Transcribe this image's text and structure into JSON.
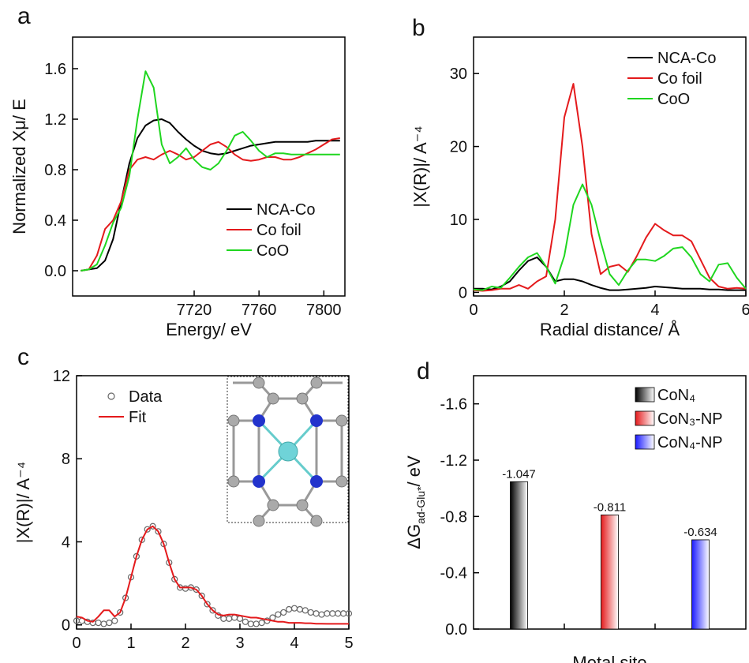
{
  "chart_data": [
    {
      "type": "line",
      "panel_label": "a",
      "x_label": "Energy/ eV",
      "y_label": "Normalized Xμ/ E",
      "x": [
        7650,
        7655,
        7660,
        7665,
        7670,
        7675,
        7680,
        7685,
        7690,
        7695,
        7700,
        7705,
        7710,
        7715,
        7720,
        7725,
        7730,
        7735,
        7740,
        7745,
        7750,
        7755,
        7760,
        7765,
        7770,
        7775,
        7780,
        7785,
        7790,
        7795,
        7800,
        7805,
        7810
      ],
      "series": [
        {
          "name": "NCA-Co",
          "color": "#000000",
          "values": [
            0,
            0.01,
            0.02,
            0.08,
            0.25,
            0.55,
            0.85,
            1.05,
            1.15,
            1.19,
            1.2,
            1.17,
            1.1,
            1.04,
            0.99,
            0.95,
            0.93,
            0.92,
            0.93,
            0.95,
            0.97,
            0.99,
            1.0,
            1.01,
            1.02,
            1.02,
            1.02,
            1.02,
            1.02,
            1.03,
            1.03,
            1.03,
            1.03
          ]
        },
        {
          "name": "Co foil",
          "color": "#e41a1c",
          "values": [
            0,
            0.01,
            0.12,
            0.33,
            0.4,
            0.55,
            0.8,
            0.88,
            0.9,
            0.88,
            0.92,
            0.95,
            0.92,
            0.88,
            0.9,
            0.95,
            1.0,
            1.02,
            0.98,
            0.92,
            0.88,
            0.87,
            0.88,
            0.9,
            0.9,
            0.88,
            0.88,
            0.9,
            0.93,
            0.96,
            1.0,
            1.04,
            1.05
          ]
        },
        {
          "name": "CoO",
          "color": "#1fd61f",
          "values": [
            0,
            0.01,
            0.05,
            0.2,
            0.38,
            0.5,
            0.75,
            1.2,
            1.58,
            1.45,
            1.0,
            0.85,
            0.9,
            0.97,
            0.88,
            0.82,
            0.8,
            0.85,
            0.95,
            1.07,
            1.1,
            1.03,
            0.95,
            0.9,
            0.93,
            0.93,
            0.92,
            0.92,
            0.92,
            0.92,
            0.92,
            0.92,
            0.92
          ]
        }
      ],
      "xlim": [
        7645,
        7813
      ],
      "xticks": [
        7720,
        7760,
        7800
      ],
      "ylim": [
        -0.2,
        1.85
      ],
      "yticks": [
        {
          "value": 0,
          "label": "0.0"
        },
        0.4,
        0.8,
        1.2,
        1.6
      ],
      "legend": "lower right"
    },
    {
      "type": "line",
      "panel_label": "b",
      "x_label": "Radial distance/ Å",
      "y_label": "|X(R)|/ A⁻⁴",
      "x": [
        0,
        0.2,
        0.4,
        0.6,
        0.8,
        1.0,
        1.2,
        1.4,
        1.6,
        1.8,
        2.0,
        2.2,
        2.4,
        2.6,
        2.8,
        3.0,
        3.2,
        3.4,
        3.6,
        3.8,
        4.0,
        4.2,
        4.4,
        4.6,
        4.8,
        5.0,
        5.2,
        5.4,
        5.6,
        5.8,
        6.0
      ],
      "series": [
        {
          "name": "NCA-Co",
          "color": "#000000",
          "values": [
            0.5,
            0.5,
            0.4,
            0.8,
            1.5,
            3.0,
            4.3,
            4.8,
            3.5,
            1.5,
            1.8,
            1.8,
            1.5,
            1.0,
            0.6,
            0.3,
            0.3,
            0.4,
            0.5,
            0.6,
            0.8,
            0.7,
            0.6,
            0.5,
            0.5,
            0.5,
            0.4,
            0.4,
            0.3,
            0.3,
            0.3
          ]
        },
        {
          "name": "Co foil",
          "color": "#e41a1c",
          "values": [
            0.3,
            0.2,
            0.3,
            0.5,
            0.5,
            1.0,
            0.5,
            1.5,
            2.2,
            10,
            24,
            28.6,
            20,
            8,
            2.5,
            3.5,
            3.8,
            2.8,
            5,
            7.5,
            9.4,
            8.5,
            7.8,
            7.8,
            7,
            4.5,
            2,
            0.8,
            0.5,
            0.6,
            0.5
          ]
        },
        {
          "name": "CoO",
          "color": "#1fd61f",
          "values": [
            0.4,
            0.3,
            0.8,
            0.6,
            2,
            3.5,
            4.8,
            5.4,
            3.5,
            1.2,
            5,
            12,
            14.8,
            12,
            7,
            2.5,
            1.0,
            3.0,
            4.5,
            4.5,
            4.3,
            5.0,
            6.0,
            6.2,
            4.8,
            2.5,
            1.5,
            3.8,
            4.0,
            2.0,
            0.5
          ]
        }
      ],
      "xlim": [
        0,
        6
      ],
      "xticks": [
        0,
        2,
        4,
        6
      ],
      "ylim": [
        -0.5,
        35
      ],
      "yticks": [
        0,
        10,
        20,
        30
      ],
      "legend": "upper right"
    },
    {
      "type": "line",
      "panel_label": "c",
      "y_label": "|X(R)|/ A⁻⁴",
      "x": [
        0,
        0.1,
        0.2,
        0.3,
        0.4,
        0.5,
        0.6,
        0.7,
        0.8,
        0.9,
        1.0,
        1.1,
        1.2,
        1.3,
        1.4,
        1.5,
        1.6,
        1.7,
        1.8,
        1.9,
        2.0,
        2.1,
        2.2,
        2.3,
        2.4,
        2.5,
        2.6,
        2.7,
        2.8,
        2.9,
        3.0,
        3.1,
        3.2,
        3.3,
        3.4,
        3.5,
        3.6,
        3.7,
        3.8,
        3.9,
        4.0,
        4.1,
        4.2,
        4.3,
        4.4,
        4.5,
        4.6,
        4.7,
        4.8,
        4.9,
        5.0
      ],
      "series": [
        {
          "name": "Data",
          "color": "#666666",
          "mode": "markers",
          "values": [
            0.2,
            0.2,
            0.15,
            0.1,
            0.1,
            0.05,
            0.1,
            0.2,
            0.6,
            1.3,
            2.3,
            3.3,
            4.1,
            4.6,
            4.75,
            4.5,
            3.9,
            3.0,
            2.2,
            1.8,
            1.75,
            1.8,
            1.7,
            1.4,
            1.0,
            0.7,
            0.45,
            0.3,
            0.3,
            0.35,
            0.3,
            0.15,
            0.05,
            0.05,
            0.1,
            0.2,
            0.35,
            0.5,
            0.6,
            0.75,
            0.8,
            0.75,
            0.7,
            0.6,
            0.55,
            0.5,
            0.55,
            0.55,
            0.55,
            0.55,
            0.55
          ]
        },
        {
          "name": "Fit",
          "color": "#e41a1c",
          "mode": "line",
          "values": [
            0.4,
            0.35,
            0.2,
            0.15,
            0.4,
            0.7,
            0.7,
            0.4,
            0.6,
            1.3,
            2.3,
            3.3,
            4.1,
            4.6,
            4.75,
            4.5,
            3.9,
            3.0,
            2.2,
            1.8,
            1.8,
            1.8,
            1.7,
            1.4,
            1.0,
            0.7,
            0.5,
            0.45,
            0.5,
            0.5,
            0.45,
            0.4,
            0.35,
            0.35,
            0.3,
            0.25,
            0.2,
            0.15,
            0.15,
            0.1,
            0.1,
            0.1,
            0.08,
            0.08,
            0.06,
            0.06,
            0.05,
            0.05,
            0.05,
            0.05,
            0.05
          ]
        }
      ],
      "xlim": [
        0,
        5
      ],
      "xticks": [
        0,
        1,
        2,
        3,
        4,
        5
      ],
      "ylim": [
        -0.2,
        12
      ],
      "yticks": [
        0,
        4,
        8,
        12
      ],
      "legend": "upper left"
    },
    {
      "type": "bar",
      "panel_label": "d",
      "x_label": "Metal site",
      "y_label": "ΔG",
      "y_label_sub": "ad-Glu*",
      "y_label_unit": "/ eV",
      "categories": [
        "CoN₄",
        "CoN₃-NP",
        "CoN₄-NP"
      ],
      "values": [
        -1.047,
        -0.811,
        -0.634
      ],
      "colors": [
        "#000000",
        "#e41a1c",
        "#1a1aff"
      ],
      "ylim": [
        0,
        -1.8
      ],
      "yticks": [
        {
          "value": 0,
          "label": "0.0"
        },
        -0.4,
        -0.8,
        -1.2,
        -1.6
      ],
      "legend": "upper right"
    }
  ]
}
